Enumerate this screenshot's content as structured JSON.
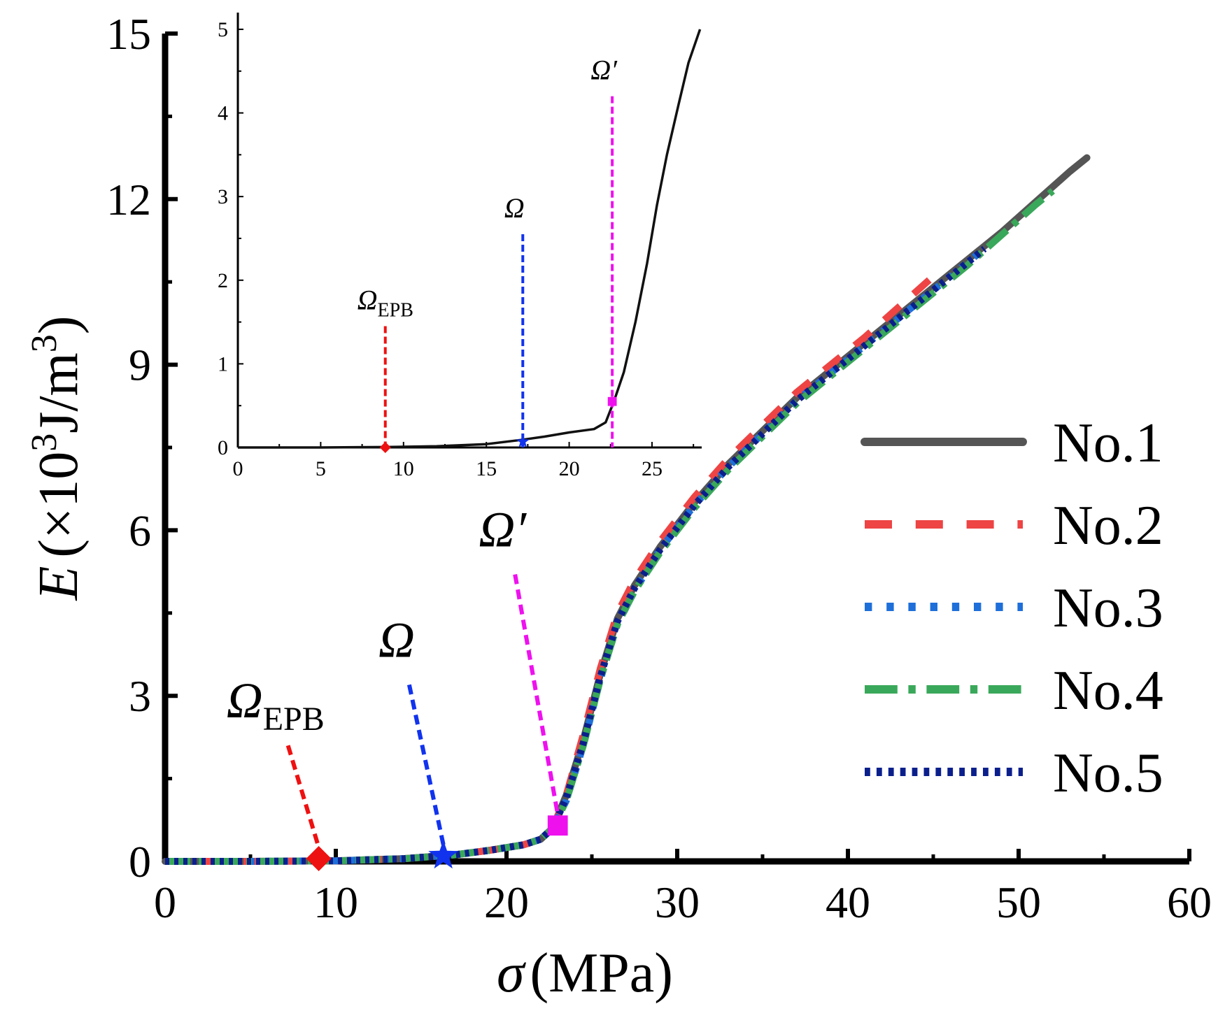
{
  "chart_data": {
    "type": "line",
    "main": {
      "xlabel": {
        "symbol": "σ",
        "unit": "(MPa)"
      },
      "ylabel": {
        "symbol": "E",
        "unit_a": "(×10",
        "sup_a": "3",
        "unit_b": "J/m",
        "sup_b": "3",
        "unit_c": ")"
      },
      "xlim": [
        0,
        60
      ],
      "ylim": [
        0,
        15
      ],
      "xticks": [
        0,
        10,
        20,
        30,
        40,
        50,
        60
      ],
      "yticks": [
        0,
        3,
        6,
        9,
        12,
        15
      ],
      "series": [
        {
          "name": "No.1",
          "color": "#555555",
          "style": "solid",
          "points": [
            [
              0,
              0
            ],
            [
              5,
              0
            ],
            [
              10,
              0.01
            ],
            [
              14,
              0.05
            ],
            [
              17,
              0.12
            ],
            [
              19,
              0.2
            ],
            [
              21,
              0.3
            ],
            [
              22,
              0.4
            ],
            [
              22.7,
              0.6
            ],
            [
              23.5,
              1.2
            ],
            [
              24.5,
              2.2
            ],
            [
              25.5,
              3.4
            ],
            [
              26.5,
              4.4
            ],
            [
              27.5,
              5.0
            ],
            [
              29,
              5.7
            ],
            [
              31,
              6.5
            ],
            [
              33,
              7.2
            ],
            [
              35,
              7.8
            ],
            [
              37,
              8.4
            ],
            [
              39,
              8.9
            ],
            [
              41,
              9.4
            ],
            [
              43,
              9.9
            ],
            [
              45,
              10.4
            ],
            [
              47,
              10.9
            ],
            [
              49,
              11.4
            ],
            [
              51,
              11.95
            ],
            [
              53,
              12.5
            ],
            [
              54,
              12.75
            ]
          ]
        },
        {
          "name": "No.2",
          "color": "#ee4444",
          "style": "dash",
          "points": [
            [
              0,
              0
            ],
            [
              5,
              0
            ],
            [
              10,
              0.01
            ],
            [
              14,
              0.05
            ],
            [
              17,
              0.12
            ],
            [
              19,
              0.2
            ],
            [
              21,
              0.3
            ],
            [
              22,
              0.4
            ],
            [
              22.7,
              0.6
            ],
            [
              23.5,
              1.2
            ],
            [
              24.5,
              2.3
            ],
            [
              25.5,
              3.5
            ],
            [
              26.5,
              4.5
            ],
            [
              27.5,
              5.1
            ],
            [
              29,
              5.8
            ],
            [
              31,
              6.6
            ],
            [
              33,
              7.3
            ],
            [
              35,
              7.9
            ],
            [
              37,
              8.5
            ],
            [
              39,
              9.0
            ],
            [
              41,
              9.5
            ],
            [
              43,
              10.05
            ],
            [
              45,
              10.6
            ]
          ]
        },
        {
          "name": "No.3",
          "color": "#1e6fd9",
          "style": "dot",
          "points": [
            [
              0,
              0
            ],
            [
              5,
              0
            ],
            [
              10,
              0.01
            ],
            [
              14,
              0.05
            ],
            [
              17,
              0.12
            ],
            [
              19,
              0.2
            ],
            [
              21,
              0.3
            ],
            [
              22,
              0.4
            ],
            [
              22.7,
              0.6
            ],
            [
              23.5,
              1.1
            ],
            [
              24.5,
              2.1
            ],
            [
              25.5,
              3.3
            ],
            [
              26.5,
              4.3
            ],
            [
              27.5,
              4.9
            ],
            [
              29,
              5.65
            ],
            [
              31,
              6.45
            ],
            [
              33,
              7.15
            ],
            [
              35,
              7.75
            ],
            [
              37,
              8.35
            ],
            [
              39,
              8.85
            ],
            [
              41,
              9.35
            ],
            [
              43,
              9.85
            ],
            [
              45,
              10.35
            ],
            [
              47,
              10.85
            ],
            [
              48,
              11.1
            ]
          ]
        },
        {
          "name": "No.4",
          "color": "#3aa85a",
          "style": "dashdot",
          "points": [
            [
              0,
              0
            ],
            [
              5,
              0
            ],
            [
              10,
              0.01
            ],
            [
              14,
              0.05
            ],
            [
              17,
              0.12
            ],
            [
              19,
              0.2
            ],
            [
              21,
              0.3
            ],
            [
              22,
              0.4
            ],
            [
              22.7,
              0.6
            ],
            [
              23.5,
              1.1
            ],
            [
              24.5,
              2.1
            ],
            [
              25.5,
              3.3
            ],
            [
              26.5,
              4.3
            ],
            [
              27.5,
              4.9
            ],
            [
              29,
              5.6
            ],
            [
              31,
              6.4
            ],
            [
              33,
              7.1
            ],
            [
              35,
              7.7
            ],
            [
              37,
              8.3
            ],
            [
              39,
              8.8
            ],
            [
              41,
              9.3
            ],
            [
              43,
              9.8
            ],
            [
              45,
              10.3
            ],
            [
              47,
              10.8
            ],
            [
              49,
              11.35
            ],
            [
              51,
              11.9
            ],
            [
              52,
              12.15
            ]
          ]
        },
        {
          "name": "No.5",
          "color": "#0b1f8c",
          "style": "densedot",
          "points": [
            [
              0,
              0
            ],
            [
              5,
              0
            ],
            [
              10,
              0.01
            ],
            [
              14,
              0.05
            ],
            [
              17,
              0.12
            ],
            [
              19,
              0.2
            ],
            [
              21,
              0.3
            ],
            [
              22,
              0.4
            ],
            [
              22.7,
              0.6
            ],
            [
              23.5,
              1.15
            ],
            [
              24.5,
              2.15
            ],
            [
              25.5,
              3.35
            ],
            [
              26.5,
              4.35
            ],
            [
              27.5,
              4.95
            ],
            [
              29,
              5.65
            ],
            [
              31,
              6.45
            ],
            [
              33,
              7.15
            ],
            [
              35,
              7.75
            ],
            [
              37,
              8.35
            ],
            [
              39,
              8.85
            ],
            [
              41,
              9.35
            ],
            [
              43,
              9.85
            ],
            [
              45,
              10.35
            ],
            [
              47,
              10.85
            ],
            [
              48,
              11.1
            ]
          ]
        }
      ],
      "markers": [
        {
          "label": "Ω",
          "sub": "EPB",
          "x": 9,
          "y": 0.05,
          "shape": "diamond",
          "color": "#ee1111",
          "leader_from": [
            7.2,
            2.1
          ]
        },
        {
          "label": "Ω",
          "sub": "",
          "x": 16.3,
          "y": 0.1,
          "shape": "star",
          "color": "#1133ee",
          "leader_from": [
            14.3,
            3.2
          ]
        },
        {
          "label": "Ω′",
          "sub": "",
          "x": 23,
          "y": 0.65,
          "shape": "square",
          "color": "#ee11ee",
          "leader_from": [
            20.5,
            5.2
          ]
        }
      ]
    },
    "inset": {
      "xlim": [
        0,
        28
      ],
      "ylim": [
        0,
        5.2
      ],
      "xticks": [
        0,
        5,
        10,
        15,
        20,
        25
      ],
      "yticks": [
        0,
        1,
        2,
        3,
        4,
        5
      ],
      "curve_color": "#111111",
      "curve": [
        [
          0,
          0
        ],
        [
          5,
          0
        ],
        [
          9,
          0.005
        ],
        [
          12,
          0.015
        ],
        [
          15,
          0.04
        ],
        [
          17.1,
          0.09
        ],
        [
          18.5,
          0.13
        ],
        [
          20,
          0.18
        ],
        [
          21.5,
          0.22
        ],
        [
          22.2,
          0.3
        ],
        [
          22.7,
          0.55
        ],
        [
          23.3,
          0.9
        ],
        [
          24,
          1.5
        ],
        [
          24.7,
          2.2
        ],
        [
          25.3,
          2.9
        ],
        [
          25.9,
          3.5
        ],
        [
          26.6,
          4.1
        ],
        [
          27.2,
          4.6
        ],
        [
          27.9,
          5.0
        ]
      ],
      "markers": [
        {
          "label": "Ω",
          "sub": "EPB",
          "x": 8.9,
          "y": 0,
          "shape": "diamond",
          "color": "#ee1111",
          "line_top": 1.45
        },
        {
          "label": "Ω",
          "sub": "",
          "x": 17.2,
          "y": 0.07,
          "shape": "star",
          "color": "#1133ee",
          "line_top": 2.55
        },
        {
          "label": "Ω′",
          "sub": "",
          "x": 22.6,
          "y": 0.55,
          "shape": "square",
          "color": "#ee11ee",
          "line_top": 4.2
        }
      ]
    },
    "legend": {
      "position": "right",
      "entries": [
        "No.1",
        "No.2",
        "No.3",
        "No.4",
        "No.5"
      ]
    }
  }
}
